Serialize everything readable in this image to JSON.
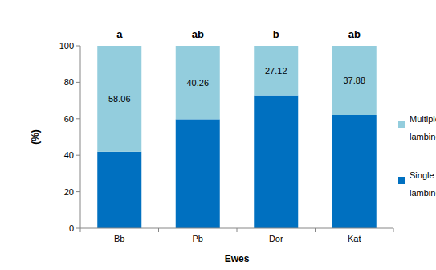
{
  "chart_data": {
    "type": "bar",
    "stacked": true,
    "categories": [
      "Bb",
      "Pb",
      "Dor",
      "Kat"
    ],
    "series": [
      {
        "name": "Single lambing",
        "color": "#0070c0",
        "values": [
          41.94,
          59.74,
          72.88,
          62.12
        ]
      },
      {
        "name": "Multiple lambing",
        "color": "#93cddd",
        "values": [
          58.06,
          40.26,
          27.12,
          37.88
        ],
        "data_labels": true
      }
    ],
    "annotations": [
      "a",
      "ab",
      "b",
      "ab"
    ],
    "y_label": "(%)",
    "x_label": "Ewes",
    "ylim": [
      0,
      100
    ],
    "yticks": [
      0,
      20,
      40,
      60,
      80,
      100
    ],
    "grid": false,
    "legend": "right"
  }
}
